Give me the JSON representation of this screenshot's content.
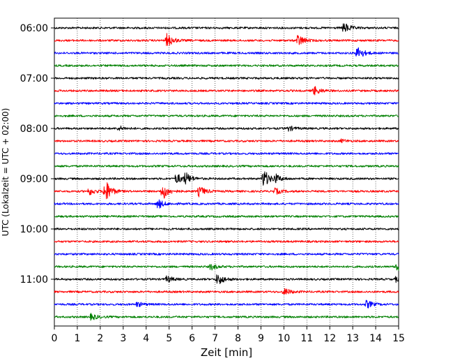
{
  "chart_data": {
    "type": "line",
    "title": "",
    "xlabel": "Zeit  [min]",
    "ylabel": "UTC (Lokalzeit = UTC + 02:00)",
    "xlim": [
      0,
      15
    ],
    "x_ticks": [
      "0",
      "1",
      "2",
      "3",
      "4",
      "5",
      "6",
      "7",
      "8",
      "9",
      "10",
      "11",
      "12",
      "13",
      "14",
      "15"
    ],
    "y_tick_labels": [
      "06:00",
      "07:00",
      "08:00",
      "09:00",
      "10:00",
      "11:00"
    ],
    "grid": "vertical-dotted",
    "trace_interval_min": 15,
    "trace_colors": [
      "#000000",
      "#ff0000",
      "#0000ff",
      "#008000"
    ],
    "traces": [
      {
        "start": "06:00",
        "color": "#000000",
        "events": [
          {
            "t": 12.6,
            "amp": 7
          }
        ]
      },
      {
        "start": "06:15",
        "color": "#ff0000",
        "events": [
          {
            "t": 4.9,
            "amp": 9
          },
          {
            "t": 10.6,
            "amp": 8
          }
        ]
      },
      {
        "start": "06:30",
        "color": "#0000ff",
        "events": [
          {
            "t": 13.2,
            "amp": 9
          }
        ]
      },
      {
        "start": "06:45",
        "color": "#008000",
        "events": []
      },
      {
        "start": "07:00",
        "color": "#000000",
        "events": []
      },
      {
        "start": "07:15",
        "color": "#ff0000",
        "events": [
          {
            "t": 11.3,
            "amp": 6
          }
        ]
      },
      {
        "start": "07:30",
        "color": "#0000ff",
        "events": []
      },
      {
        "start": "07:45",
        "color": "#008000",
        "events": []
      },
      {
        "start": "08:00",
        "color": "#000000",
        "events": [
          {
            "t": 2.8,
            "amp": 3
          },
          {
            "t": 10.2,
            "amp": 3
          }
        ]
      },
      {
        "start": "08:15",
        "color": "#ff0000",
        "events": [
          {
            "t": 12.5,
            "amp": 2
          }
        ]
      },
      {
        "start": "08:30",
        "color": "#0000ff",
        "events": []
      },
      {
        "start": "08:45",
        "color": "#008000",
        "events": []
      },
      {
        "start": "09:00",
        "color": "#000000",
        "events": [
          {
            "t": 5.3,
            "amp": 7
          },
          {
            "t": 5.7,
            "amp": 7
          },
          {
            "t": 9.1,
            "amp": 12
          },
          {
            "t": 9.6,
            "amp": 5
          }
        ]
      },
      {
        "start": "09:15",
        "color": "#ff0000",
        "events": [
          {
            "t": 1.5,
            "amp": 5
          },
          {
            "t": 2.2,
            "amp": 15
          },
          {
            "t": 4.7,
            "amp": 11
          },
          {
            "t": 6.3,
            "amp": 7
          },
          {
            "t": 9.6,
            "amp": 4
          }
        ]
      },
      {
        "start": "09:30",
        "color": "#0000ff",
        "events": [
          {
            "t": 4.5,
            "amp": 6
          }
        ]
      },
      {
        "start": "09:45",
        "color": "#008000",
        "events": []
      },
      {
        "start": "10:00",
        "color": "#000000",
        "events": []
      },
      {
        "start": "10:15",
        "color": "#ff0000",
        "events": []
      },
      {
        "start": "10:30",
        "color": "#0000ff",
        "events": []
      },
      {
        "start": "10:45",
        "color": "#008000",
        "events": [
          {
            "t": 6.8,
            "amp": 4
          },
          {
            "t": 14.9,
            "amp": 6
          }
        ]
      },
      {
        "start": "11:00",
        "color": "#000000",
        "events": [
          {
            "t": 7.1,
            "amp": 8
          },
          {
            "t": 4.9,
            "amp": 4
          },
          {
            "t": 14.9,
            "amp": 4
          }
        ]
      },
      {
        "start": "11:15",
        "color": "#ff0000",
        "events": [
          {
            "t": 10.0,
            "amp": 5
          }
        ]
      },
      {
        "start": "11:30",
        "color": "#0000ff",
        "events": [
          {
            "t": 13.6,
            "amp": 5
          },
          {
            "t": 3.6,
            "amp": 3
          }
        ]
      },
      {
        "start": "11:45",
        "color": "#008000",
        "events": [
          {
            "t": 1.6,
            "amp": 4
          }
        ]
      }
    ]
  }
}
